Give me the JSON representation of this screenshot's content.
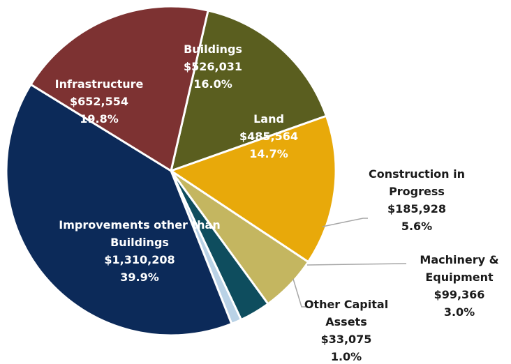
{
  "chart_data": {
    "type": "pie",
    "categories": [
      "Buildings",
      "Land",
      "Construction in Progress",
      "Machinery & Equipment",
      "Other Capital Assets",
      "Improvements other than Buildings",
      "Infrastructure"
    ],
    "values": [
      526031,
      485564,
      185928,
      99366,
      33075,
      1310208,
      652554
    ],
    "value_labels": [
      "$526,031",
      "$485,564",
      "$185,928",
      "$99,366",
      "$33,075",
      "$1,310,208",
      "$652,554"
    ],
    "percentages": [
      16.0,
      14.7,
      5.6,
      3.0,
      1.0,
      39.9,
      19.8
    ],
    "percentage_labels": [
      "16.0%",
      "14.7%",
      "5.6%",
      "3.0%",
      "1.0%",
      "39.9%",
      "19.8%"
    ],
    "colors": [
      "#5a5e1f",
      "#e8a90a",
      "#c4b660",
      "#0e4d5e",
      "#b9d2e6",
      "#0c2a59",
      "#7d3232"
    ]
  }
}
